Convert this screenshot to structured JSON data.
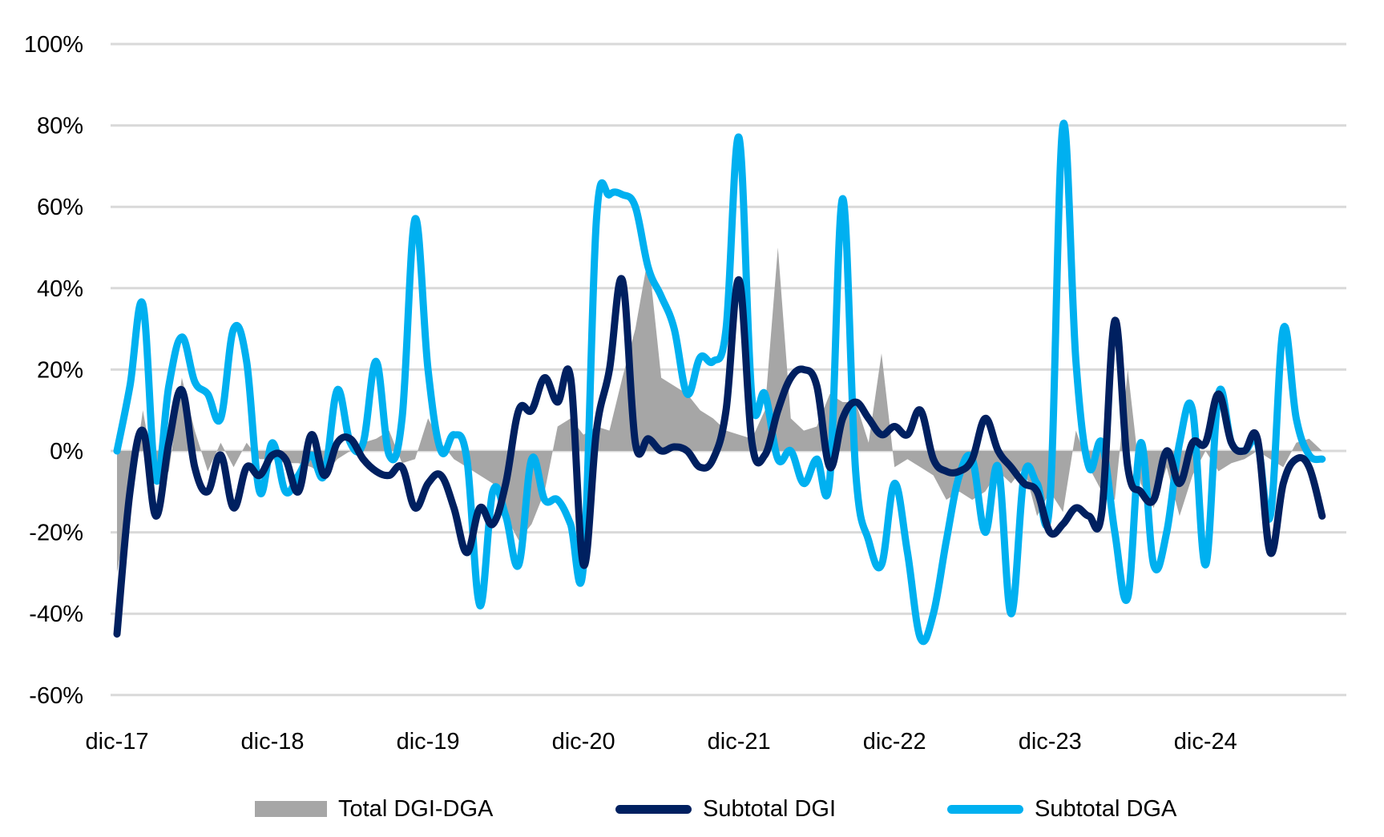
{
  "chart_data": {
    "type": "line",
    "title": "",
    "xlabel": "",
    "ylabel": "",
    "ylim": [
      -60,
      100
    ],
    "yticks": [
      "100%",
      "80%",
      "60%",
      "40%",
      "20%",
      "0%",
      "-20%",
      "-40%",
      "-60%"
    ],
    "ytick_values": [
      100,
      80,
      60,
      40,
      20,
      0,
      -20,
      -40,
      -60
    ],
    "xtick_labels": [
      "dic-17",
      "dic-18",
      "dic-19",
      "dic-20",
      "dic-21",
      "dic-22",
      "dic-23",
      "dic-24"
    ],
    "xtick_index": [
      0,
      12,
      24,
      36,
      48,
      60,
      72,
      84
    ],
    "grid": true,
    "legend_position": "bottom",
    "x_start": "dic-17",
    "x_step": "month",
    "series": [
      {
        "name": "Total DGI-DGA",
        "kind": "area",
        "color": "#A6A6A6",
        "values": [
          -30,
          -12,
          10,
          -8,
          -5,
          18,
          5,
          -5,
          2,
          -4,
          2,
          -2,
          -2,
          -3,
          -3,
          -4,
          -6,
          -2,
          0,
          2,
          3,
          5,
          -3,
          -2,
          8,
          2,
          -2,
          -4,
          -6,
          -8,
          -16,
          -22,
          -18,
          -10,
          6,
          8,
          4,
          6,
          5,
          18,
          30,
          48,
          18,
          16,
          14,
          10,
          8,
          5,
          4,
          3,
          10,
          50,
          8,
          5,
          6,
          14,
          12,
          12,
          2,
          24,
          -4,
          -2,
          -4,
          -6,
          -12,
          -10,
          -12,
          -10,
          -5,
          -8,
          -4,
          -16,
          -10,
          -15,
          5,
          -4,
          -10,
          -12,
          20,
          -8,
          -14,
          -4,
          -16,
          -6,
          0,
          -5,
          -3,
          -2,
          0,
          -2,
          -4,
          2,
          3,
          0
        ]
      },
      {
        "name": "Subtotal DGI",
        "kind": "line",
        "color": "#002060",
        "values": [
          -45,
          -10,
          5,
          -16,
          2,
          15,
          -4,
          -10,
          -1,
          -14,
          -4,
          -6,
          -1,
          -2,
          -10,
          4,
          -6,
          2,
          3,
          -2,
          -5,
          -6,
          -4,
          -14,
          -8,
          -6,
          -14,
          -25,
          -14,
          -18,
          -8,
          10,
          10,
          18,
          12,
          18,
          -28,
          5,
          20,
          42,
          2,
          3,
          0,
          1,
          0,
          -4,
          -2,
          10,
          42,
          2,
          -1,
          10,
          18,
          20,
          16,
          -4,
          8,
          12,
          8,
          4,
          6,
          4,
          10,
          -2,
          -5,
          -5,
          -2,
          8,
          0,
          -4,
          -8,
          -10,
          -20,
          -18,
          -14,
          -16,
          -15,
          32,
          -4,
          -10,
          -12,
          0,
          -8,
          2,
          2,
          14,
          2,
          0,
          3,
          -25,
          -8,
          -2,
          -4,
          -16
        ]
      },
      {
        "name": "Subtotal DGA",
        "kind": "line",
        "color": "#00B0F0",
        "values": [
          0,
          16,
          36,
          -7,
          16,
          28,
          17,
          14,
          8,
          30,
          22,
          -10,
          2,
          -10,
          -6,
          -1,
          -6,
          15,
          2,
          2,
          22,
          -1,
          8,
          57,
          20,
          0,
          4,
          -2,
          -38,
          -10,
          -16,
          -28,
          -2,
          -12,
          -12,
          -18,
          -28,
          57,
          63,
          63,
          60,
          45,
          38,
          30,
          14,
          23,
          22,
          30,
          77,
          13,
          14,
          -2,
          0,
          -8,
          -2,
          -7,
          62,
          -5,
          -22,
          -28,
          -8,
          -25,
          -46,
          -40,
          -22,
          -6,
          -2,
          -20,
          -4,
          -40,
          -6,
          -8,
          -12,
          80,
          22,
          -4,
          2,
          -20,
          -36,
          2,
          -28,
          -20,
          2,
          10,
          -28,
          14,
          2,
          0,
          2,
          -16,
          30,
          8,
          -1,
          -2
        ]
      }
    ]
  },
  "legend": {
    "items": [
      {
        "label": "Total DGI-DGA",
        "color": "#A6A6A6"
      },
      {
        "label": "Subtotal DGI",
        "color": "#002060"
      },
      {
        "label": "Subtotal DGA",
        "color": "#00B0F0"
      }
    ]
  }
}
